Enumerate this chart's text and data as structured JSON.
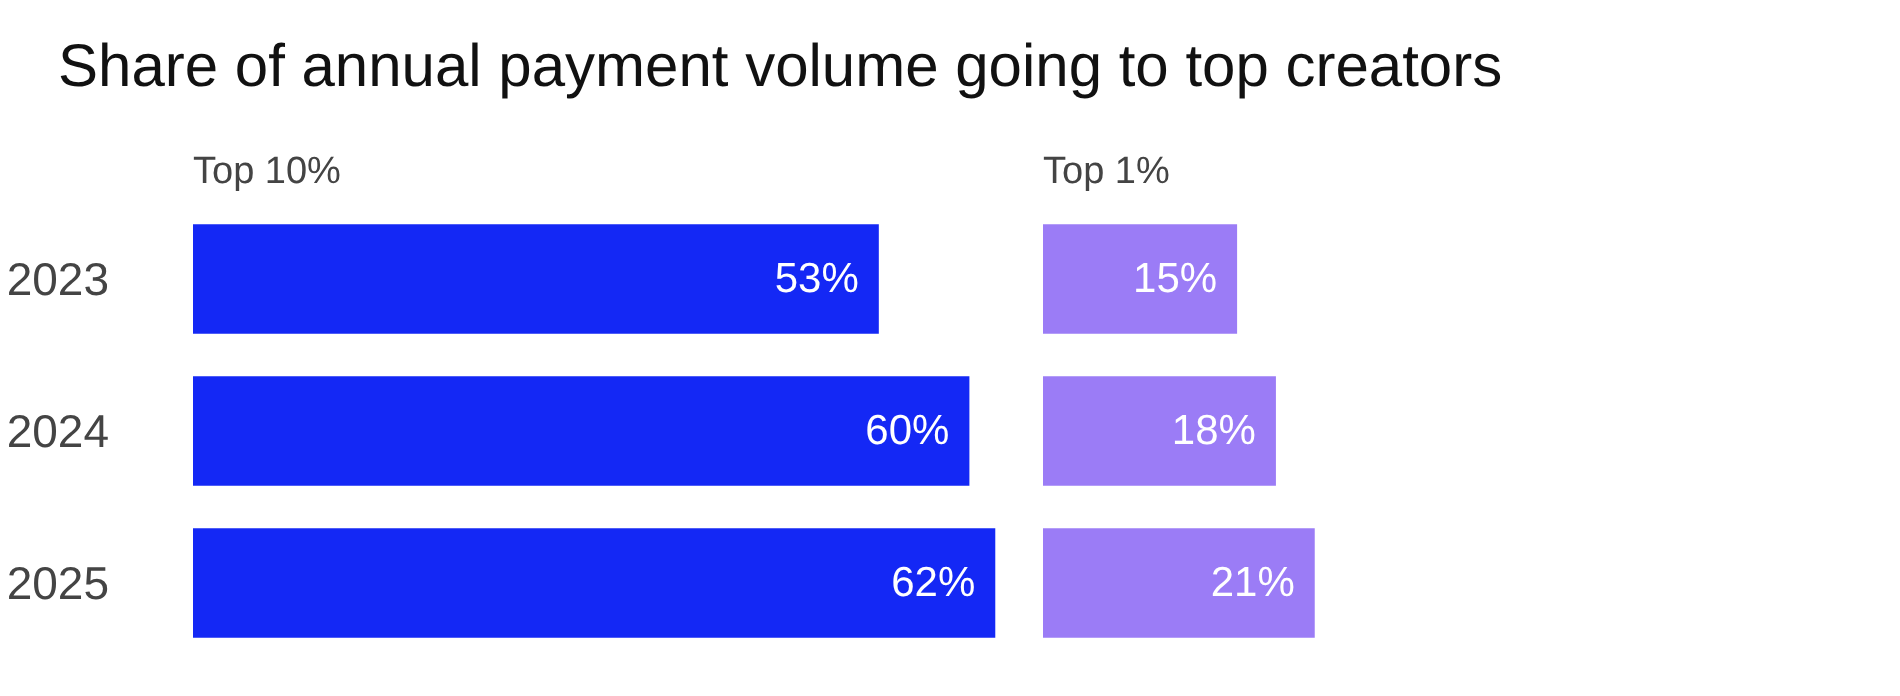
{
  "chart_data": [
    {
      "type": "bar",
      "orientation": "horizontal",
      "title": "Share of annual payment volume going to top creators",
      "subtitle": "Top 10%",
      "categories": [
        "2023",
        "2024",
        "2025"
      ],
      "values": [
        53,
        60,
        62
      ],
      "color": "#1428f5",
      "value_labels": [
        "53%",
        "60%",
        "62%"
      ],
      "tick_labels": "y",
      "grid": false
    },
    {
      "type": "bar",
      "orientation": "horizontal",
      "subtitle": "Top 1%",
      "categories": [
        "2023",
        "2024",
        "2025"
      ],
      "values": [
        15,
        18,
        21
      ],
      "color": "#9b7cf6",
      "value_labels": [
        "15%",
        "18%",
        "21%"
      ],
      "tick_labels": false,
      "grid": false
    }
  ]
}
